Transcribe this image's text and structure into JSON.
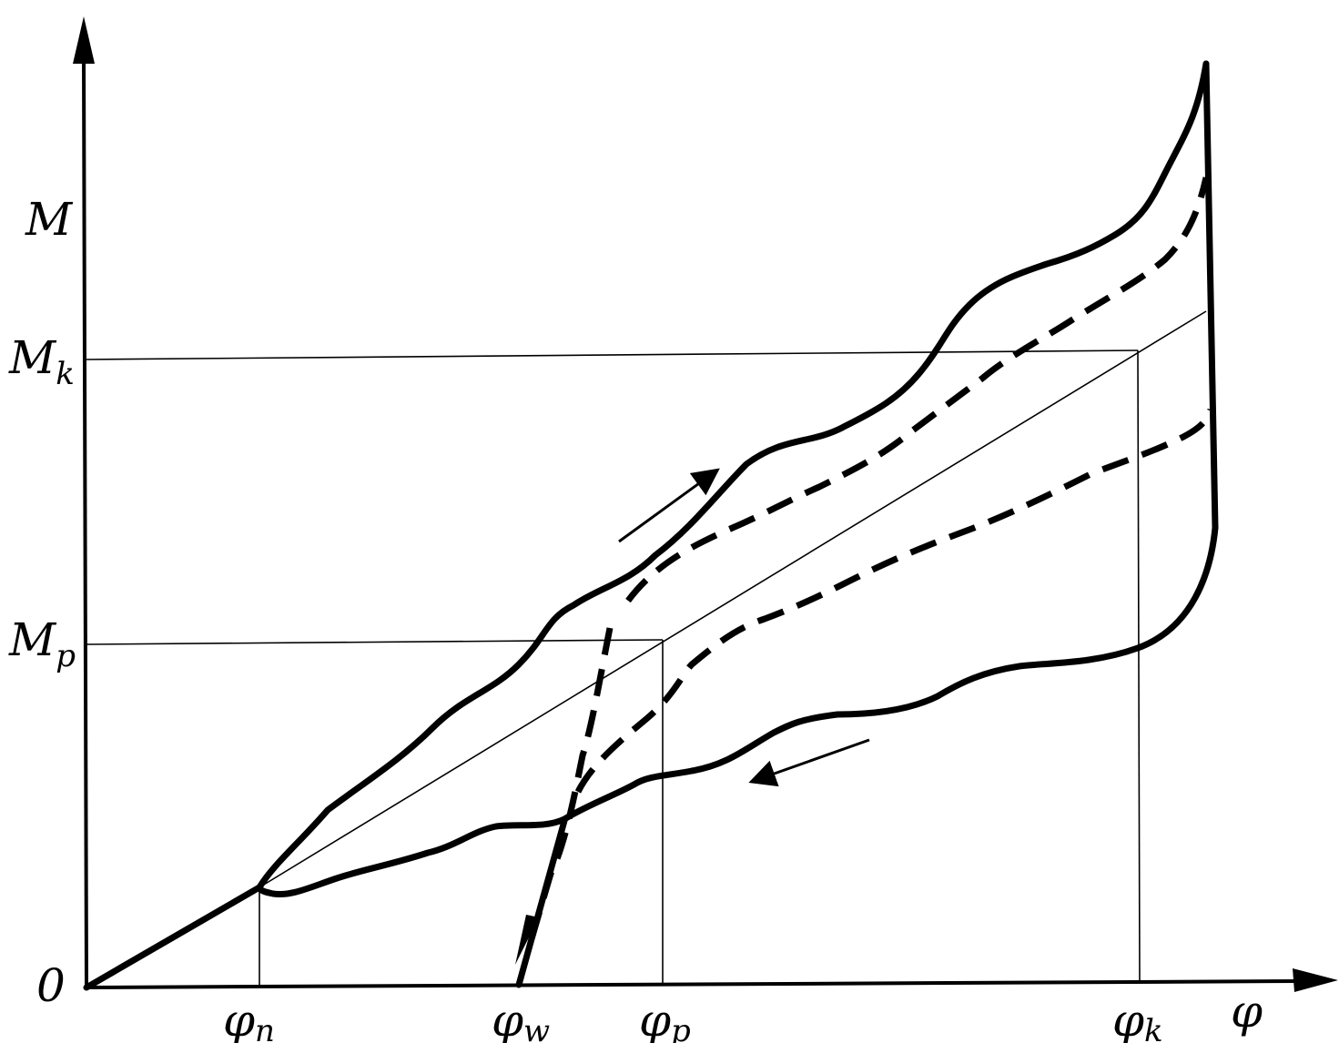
{
  "diagram": {
    "axes": {
      "y_label_main": "M",
      "y_label_sub": "",
      "x_label_main": "φ",
      "origin_label": "0"
    },
    "y_marks": [
      {
        "main": "M",
        "sub": "k"
      },
      {
        "main": "M",
        "sub": "p"
      }
    ],
    "x_marks": [
      {
        "main": "φ",
        "sub": "n"
      },
      {
        "main": "φ",
        "sub": "w"
      },
      {
        "main": "φ",
        "sub": "p"
      },
      {
        "main": "φ",
        "sub": "k"
      }
    ],
    "line_color": "#000000"
  }
}
